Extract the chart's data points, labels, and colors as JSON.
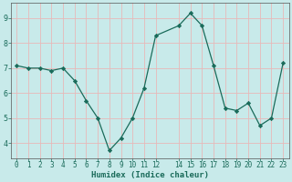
{
  "x": [
    0,
    1,
    2,
    3,
    4,
    5,
    6,
    7,
    8,
    9,
    10,
    11,
    12,
    14,
    15,
    16,
    17,
    18,
    19,
    20,
    21,
    22,
    23
  ],
  "y": [
    7.1,
    7.0,
    7.0,
    6.9,
    7.0,
    6.5,
    5.7,
    5.0,
    3.7,
    4.2,
    5.0,
    6.2,
    8.3,
    8.7,
    9.2,
    8.7,
    7.1,
    5.4,
    5.3,
    5.6,
    4.7,
    5.0,
    7.2
  ],
  "xlabel": "Humidex (Indice chaleur)",
  "xtick_labels": [
    "0",
    "1",
    "2",
    "3",
    "4",
    "5",
    "6",
    "7",
    "8",
    "9",
    "10",
    "11",
    "12",
    "14",
    "15",
    "16",
    "17",
    "18",
    "19",
    "20",
    "21",
    "22",
    "23"
  ],
  "xtick_positions": [
    0,
    1,
    2,
    3,
    4,
    5,
    6,
    7,
    8,
    9,
    10,
    11,
    12,
    14,
    15,
    16,
    17,
    18,
    19,
    20,
    21,
    22,
    23
  ],
  "yticks": [
    4,
    5,
    6,
    7,
    8,
    9
  ],
  "ylim": [
    3.4,
    9.6
  ],
  "xlim": [
    -0.5,
    23.5
  ],
  "line_color": "#1a6b5a",
  "marker_color": "#1a6b5a",
  "bg_color": "#c8eaea",
  "grid_color": "#e8b8b8",
  "font_color": "#1a6b5a",
  "tick_font_size": 5.5,
  "label_font_size": 6.5
}
